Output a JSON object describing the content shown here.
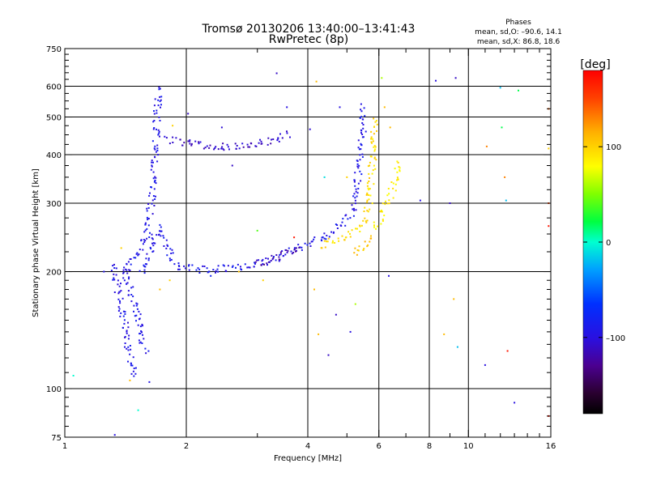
{
  "header": {
    "title_line1": "Tromsø 20130206 13:40:00–13:41:43",
    "title_line2": "RwPretec (8p)"
  },
  "stats": {
    "heading": "Phases",
    "line1": "mean, sd,O: –90.6, 14.1",
    "line2": "mean, sd,X:  86.8, 18.6"
  },
  "colorbar": {
    "unit_label": "[deg]",
    "ticks": [
      {
        "label": "100",
        "value": 100
      },
      {
        "label": "0",
        "value": 0
      },
      {
        "label": "–100",
        "value": -100
      }
    ],
    "range": [
      -180,
      180
    ],
    "colormap": "rainbow"
  },
  "chart_data": {
    "type": "scatter",
    "title": "Tromsø 20130206 13:40:00–13:41:43",
    "subtitle": "RwPretec (8p)",
    "xlabel": "Frequency [MHz]",
    "ylabel": "Stationary phase Virtual Height [km]",
    "x_scale": "log",
    "y_scale": "log",
    "xlim": [
      1,
      16
    ],
    "ylim": [
      75,
      750
    ],
    "x_ticks": [
      {
        "value": 1,
        "label": "1"
      },
      {
        "value": 2,
        "label": "2"
      },
      {
        "value": 4,
        "label": "4"
      },
      {
        "value": 6,
        "label": "6"
      },
      {
        "value": 8,
        "label": "8"
      },
      {
        "value": 10,
        "label": "10"
      },
      {
        "value": 16,
        "label": "16"
      }
    ],
    "y_ticks": [
      {
        "value": 75,
        "label": "75"
      },
      {
        "value": 100,
        "label": "100"
      },
      {
        "value": 200,
        "label": "200"
      },
      {
        "value": 300,
        "label": "300"
      },
      {
        "value": 400,
        "label": "400"
      },
      {
        "value": 500,
        "label": "500"
      },
      {
        "value": 600,
        "label": "600"
      },
      {
        "value": 750,
        "label": "750"
      }
    ],
    "x_gridlines": [
      2,
      4,
      6,
      8,
      10
    ],
    "y_gridlines": [
      100,
      200,
      300,
      400,
      500,
      600
    ],
    "color_variable": "phase [deg]",
    "traces": [
      {
        "points": [
          [
            1.32,
            210
          ],
          [
            1.36,
            170
          ],
          [
            1.4,
            150
          ],
          [
            1.43,
            130
          ],
          [
            1.45,
            120
          ],
          [
            1.47,
            112
          ],
          [
            1.49,
            108
          ]
        ],
        "phase": -95
      },
      {
        "points": [
          [
            1.38,
            205
          ],
          [
            1.42,
            190
          ],
          [
            1.46,
            175
          ],
          [
            1.5,
            160
          ],
          [
            1.52,
            148
          ],
          [
            1.55,
            135
          ],
          [
            1.58,
            125
          ]
        ],
        "phase": -92
      },
      {
        "points": [
          [
            1.4,
            200
          ],
          [
            1.45,
            210
          ],
          [
            1.5,
            220
          ],
          [
            1.55,
            235
          ],
          [
            1.6,
            260
          ],
          [
            1.63,
            300
          ],
          [
            1.65,
            350
          ],
          [
            1.67,
            420
          ],
          [
            1.69,
            520
          ],
          [
            1.7,
            600
          ]
        ],
        "phase": -93
      },
      {
        "points": [
          [
            1.55,
            200
          ],
          [
            1.6,
            215
          ],
          [
            1.65,
            240
          ],
          [
            1.7,
            260
          ],
          [
            1.75,
            250
          ],
          [
            1.8,
            230
          ],
          [
            1.85,
            215
          ],
          [
            1.9,
            208
          ],
          [
            2.0,
            205
          ],
          [
            2.2,
            203
          ],
          [
            2.5,
            205
          ],
          [
            2.8,
            208
          ],
          [
            3.1,
            212
          ],
          [
            3.4,
            220
          ],
          [
            3.7,
            230
          ],
          [
            4.0,
            238
          ],
          [
            4.3,
            245
          ],
          [
            4.6,
            255
          ],
          [
            4.9,
            265
          ],
          [
            5.1,
            285
          ],
          [
            5.25,
            320
          ],
          [
            5.35,
            380
          ],
          [
            5.42,
            450
          ],
          [
            5.48,
            540
          ]
        ],
        "phase": -92
      },
      {
        "points": [
          [
            1.78,
            440
          ],
          [
            1.95,
            430
          ],
          [
            2.2,
            425
          ],
          [
            2.5,
            420
          ],
          [
            2.8,
            422
          ],
          [
            3.0,
            428
          ],
          [
            3.2,
            435
          ],
          [
            3.4,
            445
          ],
          [
            3.6,
            455
          ]
        ],
        "phase": -110
      },
      {
        "points": [
          [
            3.0,
            212
          ],
          [
            3.2,
            215
          ],
          [
            3.4,
            220
          ],
          [
            3.6,
            225
          ],
          [
            3.8,
            230
          ]
        ],
        "phase": -120
      },
      {
        "points": [
          [
            4.3,
            235
          ],
          [
            4.6,
            240
          ],
          [
            4.9,
            245
          ],
          [
            5.2,
            252
          ],
          [
            5.4,
            262
          ],
          [
            5.55,
            278
          ],
          [
            5.65,
            300
          ],
          [
            5.72,
            350
          ],
          [
            5.78,
            420
          ],
          [
            5.82,
            500
          ]
        ],
        "phase": 95
      },
      {
        "points": [
          [
            5.8,
            260
          ],
          [
            6.0,
            275
          ],
          [
            6.2,
            295
          ],
          [
            6.4,
            320
          ],
          [
            6.6,
            355
          ],
          [
            6.75,
            390
          ]
        ],
        "phase": 88
      },
      {
        "points": [
          [
            5.2,
            225
          ],
          [
            5.4,
            232
          ],
          [
            5.6,
            240
          ],
          [
            5.8,
            248
          ]
        ],
        "phase": 105
      }
    ],
    "scatter": [
      {
        "x": 1.05,
        "y": 108,
        "phase": 0
      },
      {
        "x": 1.25,
        "y": 200,
        "phase": -95
      },
      {
        "x": 1.33,
        "y": 76,
        "phase": -100
      },
      {
        "x": 1.38,
        "y": 230,
        "phase": 100
      },
      {
        "x": 1.45,
        "y": 105,
        "phase": 110
      },
      {
        "x": 1.52,
        "y": 88,
        "phase": 0
      },
      {
        "x": 1.62,
        "y": 104,
        "phase": -95
      },
      {
        "x": 1.72,
        "y": 180,
        "phase": 110
      },
      {
        "x": 1.82,
        "y": 190,
        "phase": 100
      },
      {
        "x": 1.85,
        "y": 475,
        "phase": 100
      },
      {
        "x": 2.02,
        "y": 510,
        "phase": -110
      },
      {
        "x": 2.3,
        "y": 195,
        "phase": -80
      },
      {
        "x": 2.45,
        "y": 470,
        "phase": -105
      },
      {
        "x": 2.6,
        "y": 375,
        "phase": -110
      },
      {
        "x": 2.7,
        "y": 200,
        "phase": 105
      },
      {
        "x": 3.0,
        "y": 255,
        "phase": 40
      },
      {
        "x": 3.1,
        "y": 190,
        "phase": 100
      },
      {
        "x": 3.35,
        "y": 648,
        "phase": -110
      },
      {
        "x": 3.55,
        "y": 530,
        "phase": -100
      },
      {
        "x": 3.7,
        "y": 245,
        "phase": 170
      },
      {
        "x": 4.05,
        "y": 465,
        "phase": -105
      },
      {
        "x": 4.15,
        "y": 180,
        "phase": 110
      },
      {
        "x": 4.2,
        "y": 617,
        "phase": 110
      },
      {
        "x": 4.25,
        "y": 138,
        "phase": 110
      },
      {
        "x": 4.4,
        "y": 350,
        "phase": -10
      },
      {
        "x": 4.5,
        "y": 122,
        "phase": -110
      },
      {
        "x": 4.7,
        "y": 155,
        "phase": -110
      },
      {
        "x": 4.8,
        "y": 530,
        "phase": -100
      },
      {
        "x": 5.0,
        "y": 350,
        "phase": 100
      },
      {
        "x": 5.1,
        "y": 140,
        "phase": -100
      },
      {
        "x": 5.25,
        "y": 165,
        "phase": 60
      },
      {
        "x": 6.1,
        "y": 630,
        "phase": 60
      },
      {
        "x": 6.2,
        "y": 530,
        "phase": 110
      },
      {
        "x": 6.35,
        "y": 195,
        "phase": -100
      },
      {
        "x": 6.4,
        "y": 470,
        "phase": 110
      },
      {
        "x": 7.6,
        "y": 305,
        "phase": -100
      },
      {
        "x": 8.3,
        "y": 620,
        "phase": -100
      },
      {
        "x": 8.7,
        "y": 138,
        "phase": 110
      },
      {
        "x": 9.0,
        "y": 300,
        "phase": -110
      },
      {
        "x": 9.2,
        "y": 170,
        "phase": 110
      },
      {
        "x": 9.3,
        "y": 630,
        "phase": -110
      },
      {
        "x": 9.4,
        "y": 128,
        "phase": -20
      },
      {
        "x": 11.0,
        "y": 115,
        "phase": -100
      },
      {
        "x": 11.1,
        "y": 420,
        "phase": 130
      },
      {
        "x": 12.0,
        "y": 595,
        "phase": -20
      },
      {
        "x": 12.1,
        "y": 470,
        "phase": 20
      },
      {
        "x": 12.3,
        "y": 350,
        "phase": 130
      },
      {
        "x": 12.4,
        "y": 305,
        "phase": -20
      },
      {
        "x": 12.5,
        "y": 125,
        "phase": 170
      },
      {
        "x": 13.0,
        "y": 92,
        "phase": -100
      },
      {
        "x": 13.3,
        "y": 585,
        "phase": 20
      },
      {
        "x": 15.8,
        "y": 525,
        "phase": 140
      },
      {
        "x": 15.8,
        "y": 415,
        "phase": 100
      },
      {
        "x": 15.8,
        "y": 300,
        "phase": 150
      },
      {
        "x": 15.8,
        "y": 262,
        "phase": 170
      },
      {
        "x": 15.8,
        "y": 85,
        "phase": 170
      }
    ]
  }
}
